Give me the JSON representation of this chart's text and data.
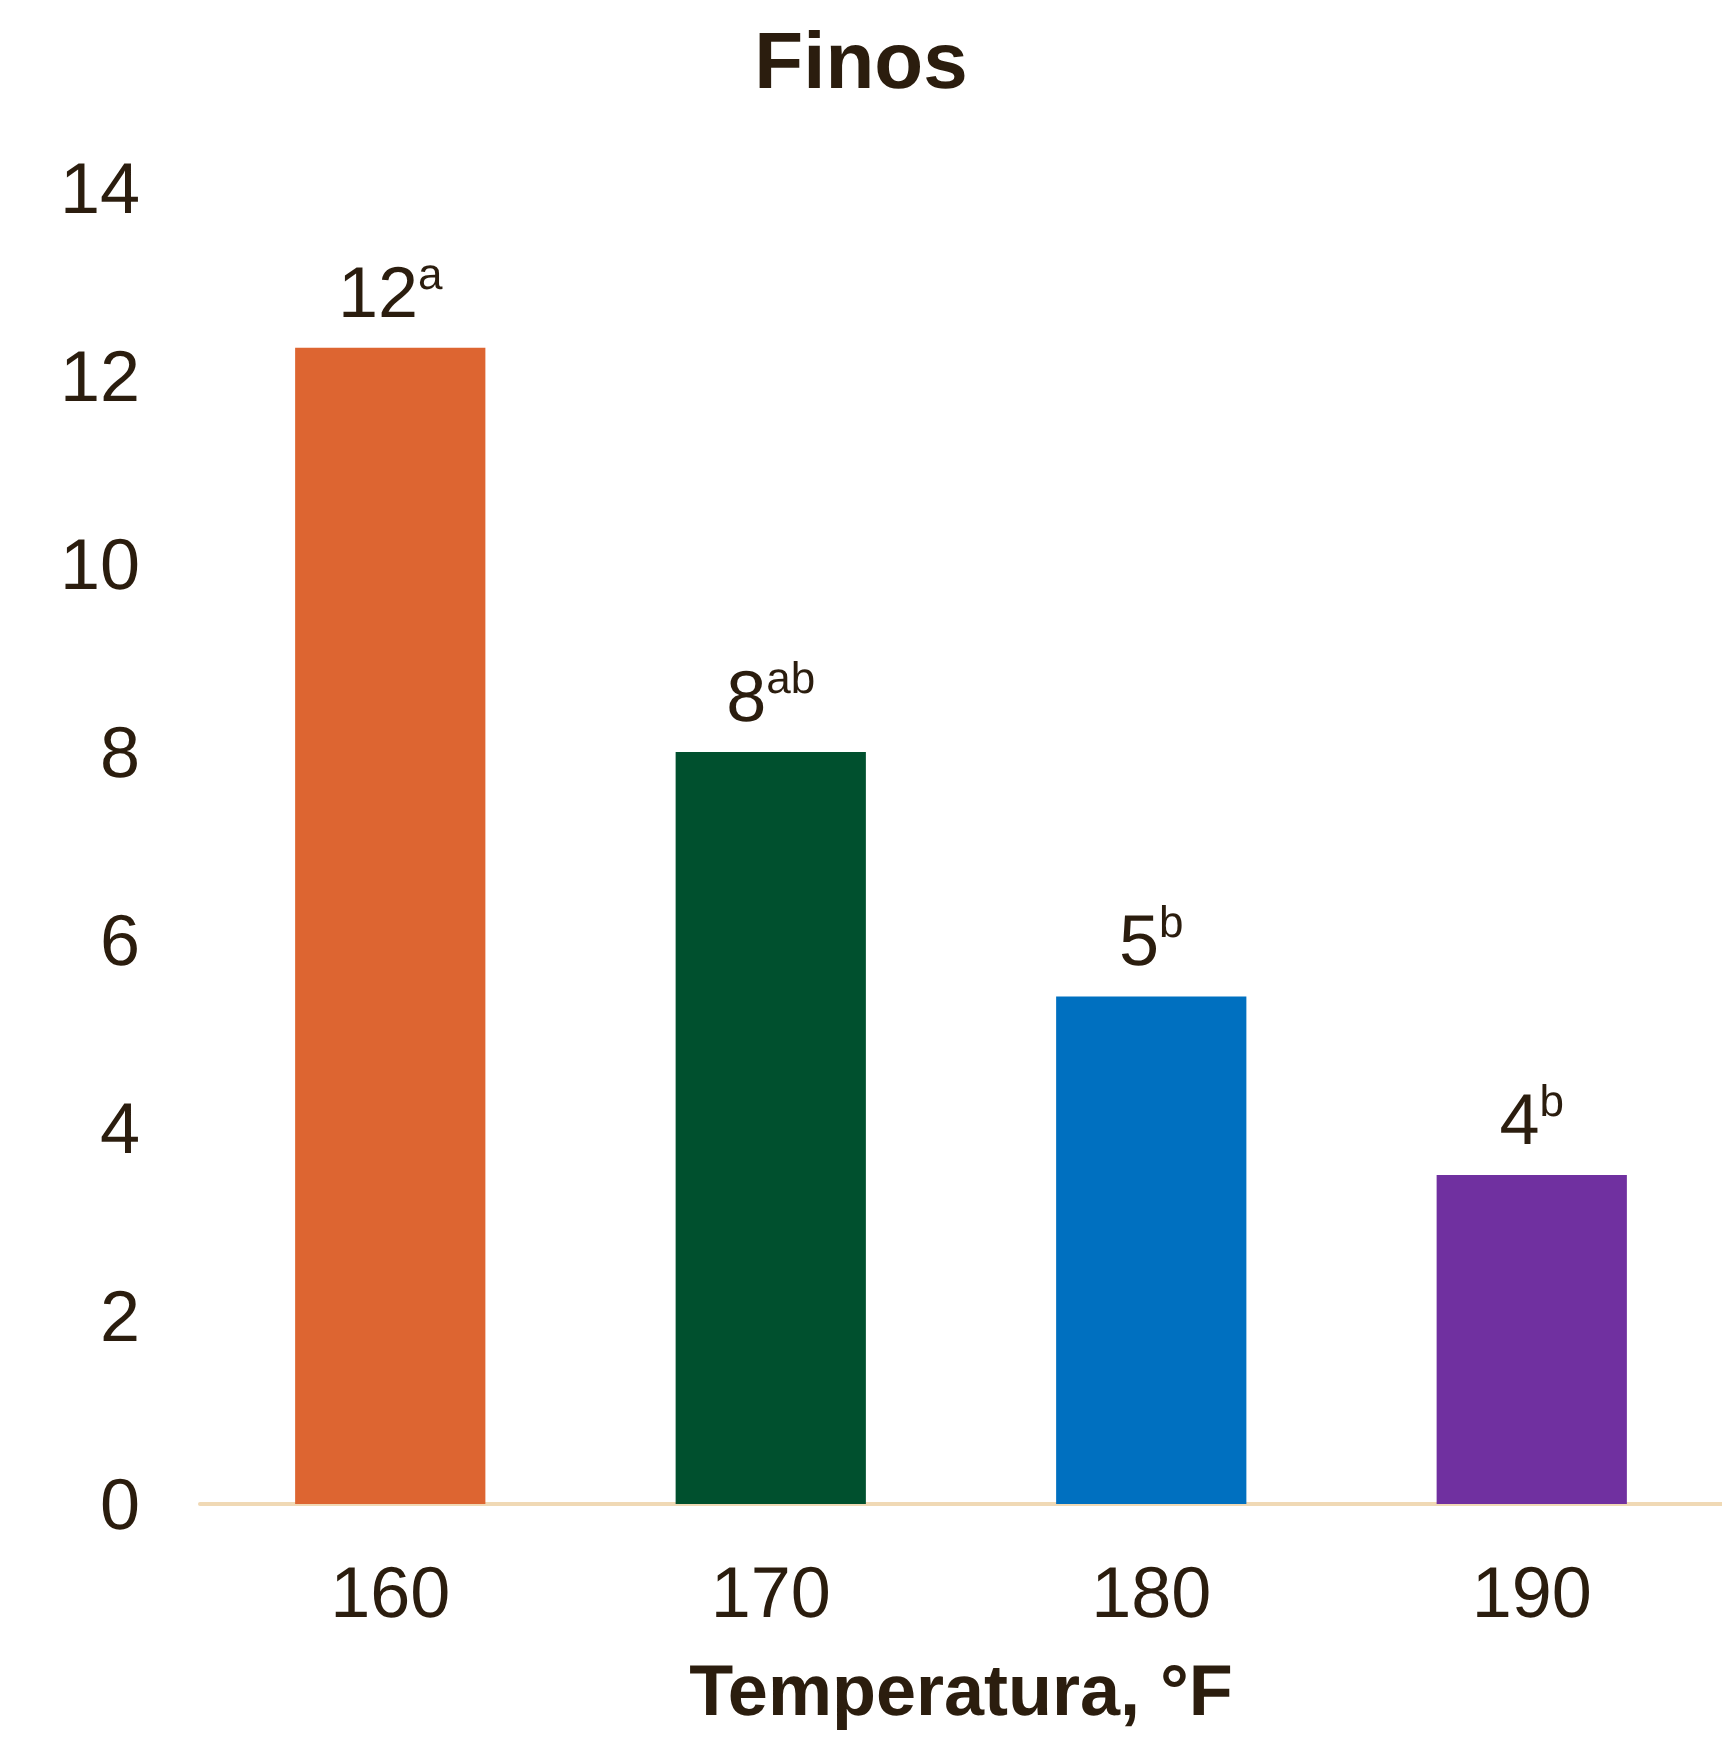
{
  "chart_data": {
    "type": "bar",
    "title": "Finos",
    "xlabel": "Temperatura, °F",
    "categories": [
      "160",
      "170",
      "180",
      "190"
    ],
    "values": [
      12.3,
      8,
      5.4,
      3.5
    ],
    "colors": [
      "#dd6531",
      "#00502e",
      "#0070c0",
      "#7030a0"
    ],
    "value_labels": [
      "12$^{a}$",
      "8$^{ab}$",
      "5$^{b}$",
      "4$^{b}$"
    ],
    "ylim": [
      0,
      14
    ],
    "yticks": [
      0,
      2,
      4,
      6,
      8,
      10,
      12,
      14
    ],
    "grid": false
  }
}
